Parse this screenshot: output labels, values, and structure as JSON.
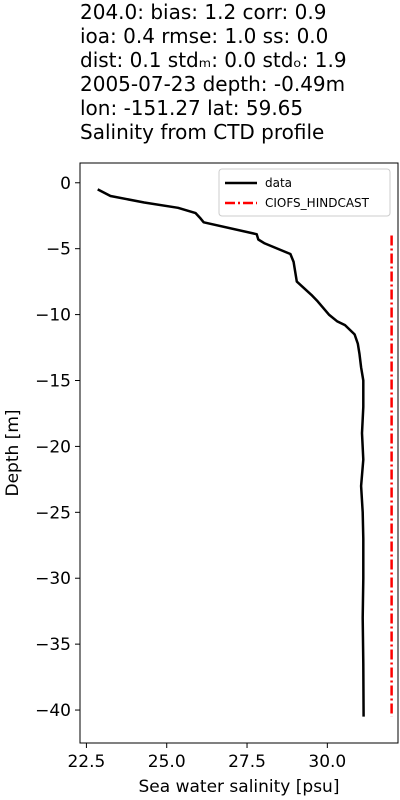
{
  "title_lines": [
    "204.0: bias: 1.2  corr: 0.9",
    "ioa: 0.4  rmse: 1.0  ss: 0.0",
    "dist: 0.1  stdₘ: 0.0  stdₒ: 1.9",
    "2005-07-23 depth: -0.49m",
    "lon: -151.27 lat: 59.65",
    "Salinity from CTD profile"
  ],
  "chart_data": {
    "type": "line",
    "xlabel": "Sea water salinity [psu]",
    "ylabel": "Depth [m]",
    "xlim": [
      22.3,
      32.2
    ],
    "ylim": [
      -42.5,
      1.5
    ],
    "xticks": [
      22.5,
      25.0,
      27.5,
      30.0
    ],
    "xtick_labels": [
      "22.5",
      "25.0",
      "27.5",
      "30.0"
    ],
    "yticks": [
      0,
      -5,
      -10,
      -15,
      -20,
      -25,
      -30,
      -35,
      -40
    ],
    "ytick_labels": [
      "0",
      "−5",
      "−10",
      "−15",
      "−20",
      "−25",
      "−30",
      "−35",
      "−40"
    ],
    "grid": false,
    "legend_position": "top-right",
    "series": [
      {
        "name": "data",
        "color": "#000000",
        "style": "solid",
        "x": [
          22.85,
          23.25,
          24.3,
          25.35,
          25.9,
          26.05,
          26.15,
          27.8,
          27.85,
          28.05,
          28.85,
          28.95,
          29.05,
          29.5,
          29.7,
          30.05,
          30.3,
          30.55,
          30.85,
          30.95,
          31.0,
          31.05,
          31.12,
          31.12,
          31.08,
          31.12,
          31.05,
          31.1,
          31.12,
          31.12,
          31.1,
          31.12,
          31.13
        ],
        "y": [
          -0.5,
          -1.0,
          -1.5,
          -1.9,
          -2.3,
          -2.7,
          -3.0,
          -3.9,
          -4.3,
          -4.6,
          -5.4,
          -6.0,
          -7.5,
          -8.5,
          -9.0,
          -10.0,
          -10.5,
          -10.8,
          -11.5,
          -12.2,
          -13.0,
          -14.0,
          -15.0,
          -17.0,
          -19.0,
          -21.0,
          -23.0,
          -25.0,
          -27.0,
          -30.0,
          -33.0,
          -36.5,
          -40.5
        ]
      },
      {
        "name": "CIOFS_HINDCAST",
        "color": "#ff0000",
        "style": "dashdot",
        "x": [
          32.0,
          32.0
        ],
        "y": [
          -4.0,
          -40.5
        ]
      }
    ]
  }
}
